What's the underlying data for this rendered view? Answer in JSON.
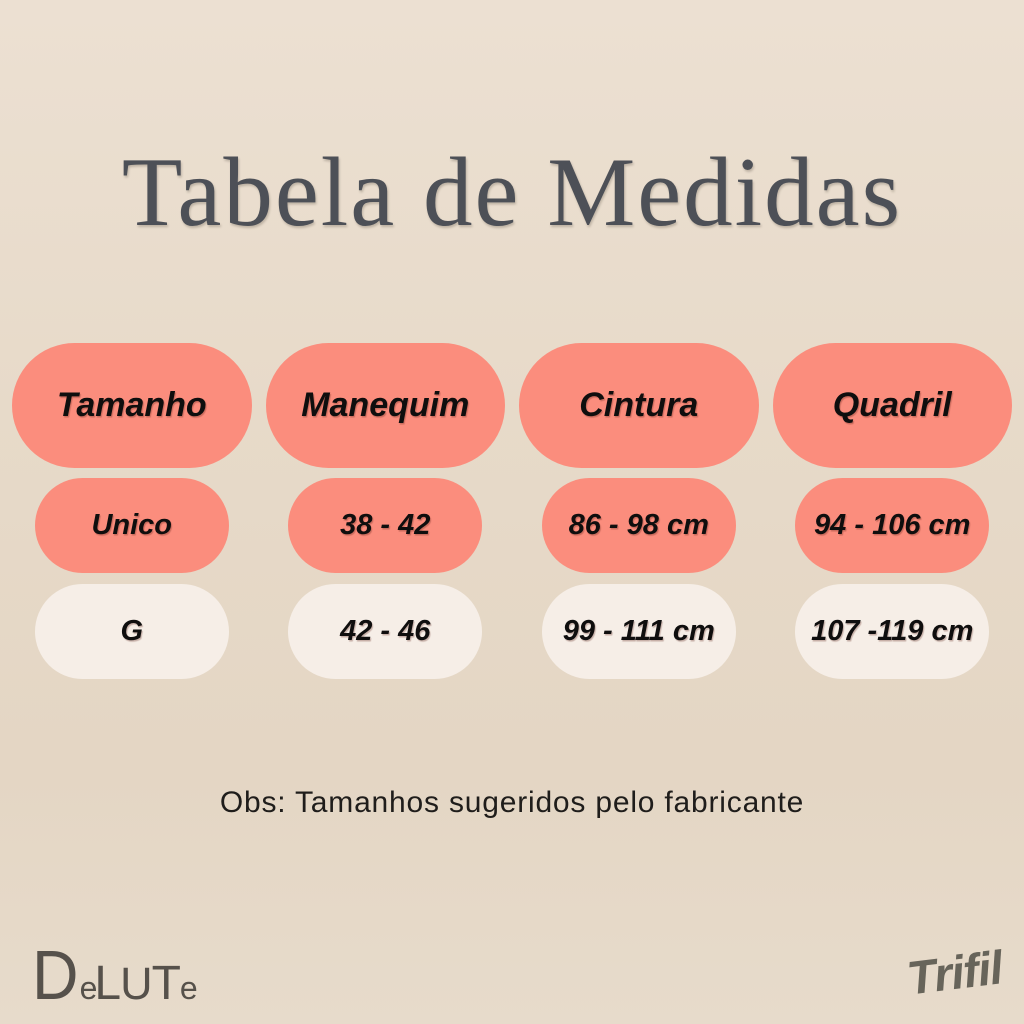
{
  "title": "Tabela de Medidas",
  "table": {
    "headers": [
      "Tamanho",
      "Manequim",
      "Cintura",
      "Quadril"
    ],
    "rows": [
      {
        "cells": [
          "Unico",
          "38 - 42",
          "86 - 98 cm",
          "94 - 106 cm"
        ]
      },
      {
        "cells": [
          "G",
          "42 - 46",
          "99 - 111 cm",
          "107 -119 cm"
        ]
      }
    ]
  },
  "note": "Obs: Tamanhos sugeridos pelo fabricante",
  "brands": {
    "left": {
      "name": "Delute",
      "letters": [
        "D",
        "e",
        "L",
        "U",
        "T",
        "e"
      ]
    },
    "right": {
      "text": "Trifil"
    }
  },
  "colors": {
    "background": "#e7dac9",
    "accent_salmon": "#fb8d7d",
    "pill_cream": "#f6eee7",
    "title_text": "#4d5057",
    "cell_text": "#0f0e0e",
    "brand_left_text": "#56514b",
    "brand_right_text": "#67645a"
  }
}
